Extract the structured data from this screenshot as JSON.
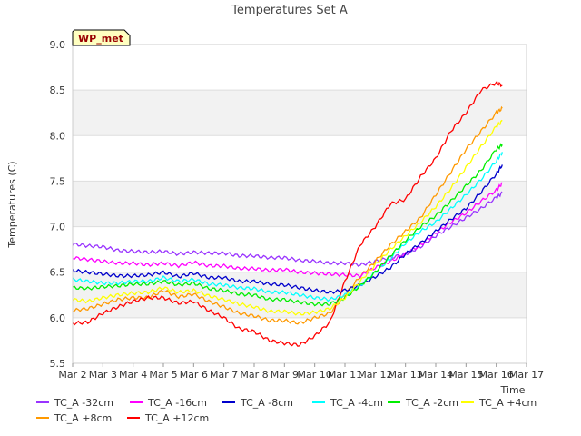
{
  "chart_data": {
    "type": "line",
    "title": "Temperatures Set A",
    "xlabel": "Time",
    "ylabel": "Temperatures (C)",
    "ylim": [
      5.5,
      9.0
    ],
    "xlim": [
      0,
      15
    ],
    "yticks": [
      5.5,
      6.0,
      6.5,
      7.0,
      7.5,
      8.0,
      8.5,
      9.0
    ],
    "ytick_labels": [
      "5.5",
      "6.0",
      "6.5",
      "7.0",
      "7.5",
      "8.0",
      "8.5",
      "9.0"
    ],
    "xticks": [
      0,
      1,
      2,
      3,
      4,
      5,
      6,
      7,
      8,
      9,
      10,
      11,
      12,
      13,
      14,
      15
    ],
    "xtick_labels": [
      "Mar 2",
      "Mar 3",
      "Mar 4",
      "Mar 5",
      "Mar 6",
      "Mar 7",
      "Mar 8",
      "Mar 9",
      "Mar 10",
      "Mar 11",
      "Mar 12",
      "Mar 13",
      "Mar 14",
      "Mar 15",
      "Mar 16",
      "Mar 17"
    ],
    "grid": true,
    "legend_placement": "bottom",
    "badge": "WP_met",
    "x": [
      0,
      0.5,
      1,
      1.5,
      2,
      2.5,
      3,
      3.5,
      4,
      4.5,
      5,
      5.5,
      6,
      6.5,
      7,
      7.5,
      8,
      8.5,
      9,
      9.5,
      10,
      10.5,
      11,
      11.5,
      12,
      12.5,
      13,
      13.5,
      14,
      14.2
    ],
    "series": [
      {
        "name": "TC_A -32cm",
        "color": "#9933ff",
        "values": [
          6.81,
          6.79,
          6.78,
          6.74,
          6.73,
          6.72,
          6.73,
          6.7,
          6.72,
          6.71,
          6.71,
          6.68,
          6.68,
          6.66,
          6.66,
          6.63,
          6.62,
          6.6,
          6.6,
          6.58,
          6.62,
          6.66,
          6.7,
          6.78,
          6.9,
          7.0,
          7.1,
          7.2,
          7.32,
          7.37
        ]
      },
      {
        "name": "TC_A +8cm",
        "color": "#ff9900",
        "values": [
          6.08,
          6.1,
          6.15,
          6.2,
          6.22,
          6.22,
          6.3,
          6.23,
          6.26,
          6.18,
          6.12,
          6.05,
          6.02,
          5.97,
          5.97,
          5.94,
          6.0,
          6.05,
          6.25,
          6.45,
          6.62,
          6.8,
          6.95,
          7.1,
          7.35,
          7.6,
          7.85,
          8.05,
          8.25,
          8.3
        ]
      },
      {
        "name": "TC_A -16cm",
        "color": "#ff00ff",
        "values": [
          6.66,
          6.64,
          6.62,
          6.6,
          6.6,
          6.58,
          6.6,
          6.57,
          6.61,
          6.57,
          6.57,
          6.54,
          6.54,
          6.52,
          6.53,
          6.5,
          6.49,
          6.48,
          6.47,
          6.46,
          6.55,
          6.62,
          6.7,
          6.8,
          6.93,
          7.05,
          7.15,
          7.28,
          7.4,
          7.48
        ]
      },
      {
        "name": "TC_A +12cm",
        "color": "#ff0000",
        "values": [
          5.94,
          5.95,
          6.05,
          6.12,
          6.18,
          6.22,
          6.22,
          6.16,
          6.18,
          6.08,
          6.0,
          5.88,
          5.85,
          5.75,
          5.72,
          5.7,
          5.8,
          5.95,
          6.4,
          6.8,
          7.0,
          7.25,
          7.3,
          7.55,
          7.75,
          8.05,
          8.25,
          8.5,
          8.58,
          8.55
        ]
      },
      {
        "name": "TC_A -8cm",
        "color": "#0000cc",
        "values": [
          6.52,
          6.5,
          6.48,
          6.46,
          6.46,
          6.47,
          6.5,
          6.45,
          6.49,
          6.44,
          6.44,
          6.4,
          6.4,
          6.37,
          6.36,
          6.33,
          6.3,
          6.28,
          6.3,
          6.36,
          6.45,
          6.55,
          6.7,
          6.82,
          6.95,
          7.08,
          7.2,
          7.38,
          7.58,
          7.68
        ]
      },
      {
        "name": "TC_A -4cm",
        "color": "#00ffff",
        "values": [
          6.42,
          6.4,
          6.38,
          6.38,
          6.4,
          6.4,
          6.44,
          6.4,
          6.42,
          6.37,
          6.36,
          6.33,
          6.32,
          6.28,
          6.28,
          6.25,
          6.22,
          6.2,
          6.25,
          6.35,
          6.5,
          6.65,
          6.82,
          6.95,
          7.05,
          7.2,
          7.35,
          7.52,
          7.72,
          7.82
        ]
      },
      {
        "name": "TC_A -2cm",
        "color": "#00ee00",
        "values": [
          6.33,
          6.32,
          6.34,
          6.35,
          6.37,
          6.37,
          6.4,
          6.36,
          6.38,
          6.32,
          6.3,
          6.26,
          6.25,
          6.2,
          6.2,
          6.17,
          6.15,
          6.15,
          6.22,
          6.35,
          6.5,
          6.68,
          6.85,
          7.0,
          7.12,
          7.28,
          7.45,
          7.62,
          7.85,
          7.9
        ]
      },
      {
        "name": "TC_A +4cm",
        "color": "#ffff00",
        "values": [
          6.2,
          6.18,
          6.22,
          6.25,
          6.27,
          6.28,
          6.33,
          6.28,
          6.3,
          6.24,
          6.2,
          6.15,
          6.12,
          6.07,
          6.07,
          6.04,
          6.06,
          6.1,
          6.22,
          6.4,
          6.58,
          6.75,
          6.9,
          7.05,
          7.22,
          7.42,
          7.65,
          7.88,
          8.1,
          8.16
        ]
      }
    ]
  }
}
